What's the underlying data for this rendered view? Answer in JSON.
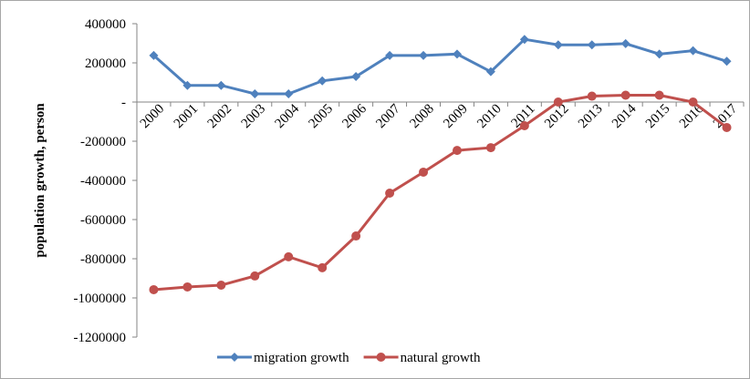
{
  "chart_data": {
    "type": "line",
    "y_label": "population  growth, person",
    "categories": [
      "2000",
      "2001",
      "2002",
      "2003",
      "2004",
      "2005",
      "2006",
      "2007",
      "2008",
      "2009",
      "2010",
      "2011",
      "2012",
      "2013",
      "2014",
      "2015",
      "2016",
      "2017"
    ],
    "series": [
      {
        "name": "migration growth",
        "color": "#4f81bd",
        "marker": "diamond",
        "values": [
          238000,
          85000,
          85000,
          42000,
          42000,
          108000,
          130000,
          238000,
          238000,
          245000,
          155000,
          320000,
          292000,
          292000,
          298000,
          245000,
          262000,
          208000
        ]
      },
      {
        "name": "natural growth",
        "color": "#c0504d",
        "marker": "circle",
        "values": [
          -958000,
          -944000,
          -935000,
          -888000,
          -790000,
          -846000,
          -684000,
          -465000,
          -358000,
          -247000,
          -233000,
          -121000,
          0,
          30000,
          35000,
          35000,
          0,
          -130000
        ]
      }
    ],
    "ylim": [
      -1200000,
      400000
    ],
    "yticks": [
      400000,
      200000,
      {
        "value": 0,
        "label": "-"
      },
      -200000,
      -400000,
      -600000,
      -800000,
      -1000000,
      -1200000
    ],
    "legend": "bottom"
  }
}
